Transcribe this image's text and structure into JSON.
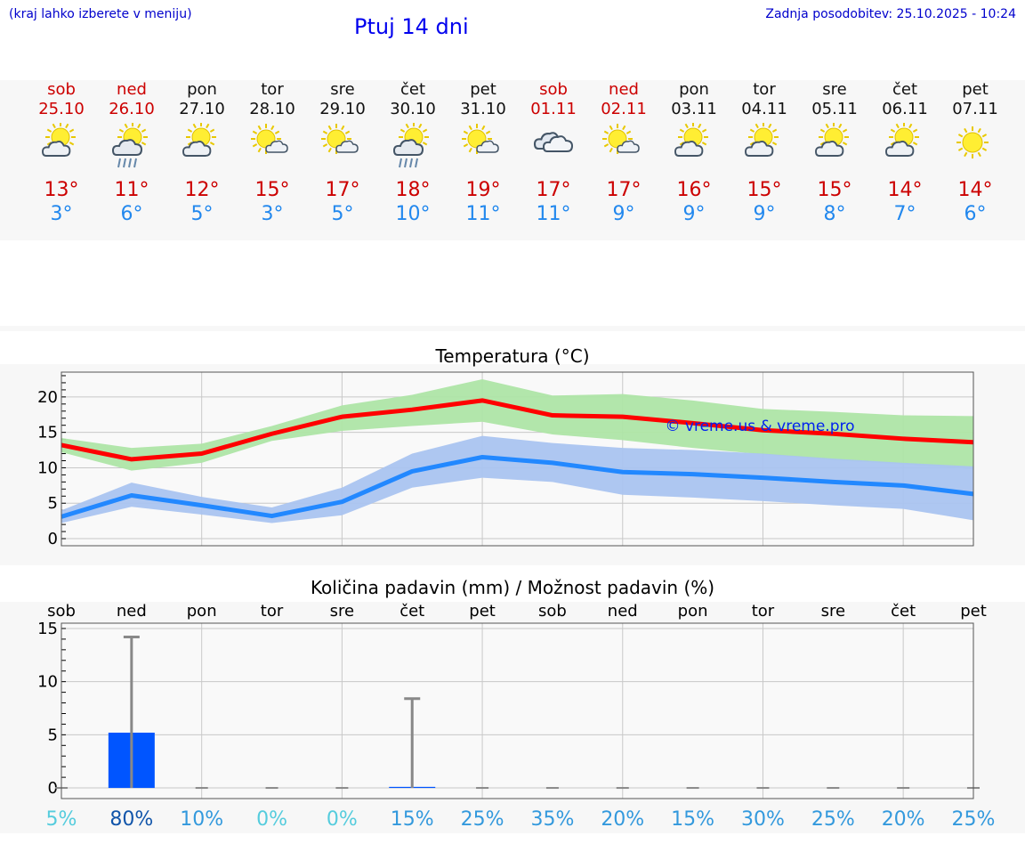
{
  "header": {
    "hint": "(kraj lahko izberete v meniju)",
    "title": "Ptuj 14 dni",
    "updated": "Zadnja posodobitev: 25.10.2025 - 10:24"
  },
  "days": [
    {
      "name": "sob",
      "date": "25.10",
      "weekend": true,
      "icon": "sun-cloud-icon",
      "tmax": "13°",
      "tmin": "3°"
    },
    {
      "name": "ned",
      "date": "26.10",
      "weekend": true,
      "icon": "sun-cloud-rain-icon",
      "tmax": "11°",
      "tmin": "6°"
    },
    {
      "name": "pon",
      "date": "27.10",
      "weekend": false,
      "icon": "sun-cloud-icon",
      "tmax": "12°",
      "tmin": "5°"
    },
    {
      "name": "tor",
      "date": "28.10",
      "weekend": false,
      "icon": "sun-small-cloud-icon",
      "tmax": "15°",
      "tmin": "3°"
    },
    {
      "name": "sre",
      "date": "29.10",
      "weekend": false,
      "icon": "sun-small-cloud-icon",
      "tmax": "17°",
      "tmin": "5°"
    },
    {
      "name": "čet",
      "date": "30.10",
      "weekend": false,
      "icon": "sun-cloud-rain-icon",
      "tmax": "18°",
      "tmin": "10°"
    },
    {
      "name": "pet",
      "date": "31.10",
      "weekend": false,
      "icon": "sun-small-cloud-icon",
      "tmax": "19°",
      "tmin": "11°"
    },
    {
      "name": "sob",
      "date": "01.11",
      "weekend": true,
      "icon": "overcast-icon",
      "tmax": "17°",
      "tmin": "11°"
    },
    {
      "name": "ned",
      "date": "02.11",
      "weekend": true,
      "icon": "sun-small-cloud-icon",
      "tmax": "17°",
      "tmin": "9°"
    },
    {
      "name": "pon",
      "date": "03.11",
      "weekend": false,
      "icon": "sun-cloud-icon",
      "tmax": "16°",
      "tmin": "9°"
    },
    {
      "name": "tor",
      "date": "04.11",
      "weekend": false,
      "icon": "sun-cloud-icon",
      "tmax": "15°",
      "tmin": "9°"
    },
    {
      "name": "sre",
      "date": "05.11",
      "weekend": false,
      "icon": "sun-cloud-icon",
      "tmax": "15°",
      "tmin": "8°"
    },
    {
      "name": "čet",
      "date": "06.11",
      "weekend": false,
      "icon": "sun-cloud-icon",
      "tmax": "14°",
      "tmin": "7°"
    },
    {
      "name": "pet",
      "date": "07.11",
      "weekend": false,
      "icon": "sun-icon",
      "tmax": "14°",
      "tmin": "6°"
    }
  ],
  "chart_data": [
    {
      "type": "line",
      "title": "Temperatura (°C)",
      "watermark": "© vreme.us & vreme.pro",
      "x": [
        0,
        1,
        2,
        3,
        4,
        5,
        6,
        7,
        8,
        9,
        10,
        11,
        12,
        13
      ],
      "ylim": [
        -1,
        23.5
      ],
      "yticks": [
        0,
        5,
        10,
        15,
        20
      ],
      "grid": true,
      "series": [
        {
          "values": [
            13.2,
            11.2,
            12.0,
            14.8,
            17.2,
            18.2,
            19.5,
            17.4,
            17.2,
            16.3,
            15.3,
            14.8,
            14.1,
            13.6
          ],
          "color": "#ff0000",
          "band_high": [
            14.2,
            12.8,
            13.4,
            15.9,
            18.8,
            20.3,
            22.5,
            20.2,
            20.4,
            19.5,
            18.3,
            17.9,
            17.4,
            17.3
          ],
          "band_low": [
            12.2,
            9.6,
            10.7,
            13.8,
            15.2,
            15.9,
            16.5,
            14.7,
            13.9,
            12.8,
            11.9,
            11.1,
            10.5,
            9.8
          ],
          "band_color": "#aee5a6"
        },
        {
          "values": [
            3.1,
            6.1,
            4.7,
            3.2,
            5.2,
            9.5,
            11.5,
            10.7,
            9.4,
            9.1,
            8.6,
            8.0,
            7.5,
            6.3
          ],
          "color": "#2288ff",
          "band_high": [
            4.0,
            7.9,
            5.9,
            4.4,
            7.2,
            12.0,
            14.5,
            13.5,
            12.8,
            12.5,
            12.0,
            11.3,
            10.7,
            10.2
          ],
          "band_low": [
            2.2,
            4.5,
            3.4,
            2.2,
            3.3,
            7.2,
            8.6,
            8.0,
            6.2,
            5.8,
            5.3,
            4.7,
            4.2,
            2.6
          ],
          "band_color": "#aac4f0"
        }
      ]
    },
    {
      "type": "bar",
      "title": "Količina padavin (mm) / Možnost padavin (%)",
      "categories": [
        "sob",
        "ned",
        "pon",
        "tor",
        "sre",
        "čet",
        "pet",
        "sob",
        "ned",
        "pon",
        "tor",
        "sre",
        "čet",
        "pet"
      ],
      "values": [
        0,
        5.2,
        0,
        0,
        0,
        0.1,
        0,
        0,
        0,
        0,
        0,
        0,
        0,
        0
      ],
      "max_values": [
        0,
        14.2,
        0,
        0,
        0,
        8.4,
        0,
        0,
        0,
        0,
        0,
        0,
        0,
        0
      ],
      "probability": [
        "5%",
        "80%",
        "10%",
        "0%",
        "0%",
        "15%",
        "25%",
        "35%",
        "20%",
        "15%",
        "30%",
        "25%",
        "20%",
        "25%"
      ],
      "probability_colors": [
        "#55ccdd",
        "#1155aa",
        "#3399dd",
        "#55ccdd",
        "#55ccdd",
        "#3399dd",
        "#3399dd",
        "#3399dd",
        "#3399dd",
        "#3399dd",
        "#3399dd",
        "#3399dd",
        "#3399dd",
        "#3399dd"
      ],
      "ylim": [
        -1,
        15.5
      ],
      "yticks": [
        0,
        5,
        10,
        15
      ],
      "bar_color": "#0055ff",
      "whisker_color": "#888888",
      "grid": true
    }
  ],
  "colors": {
    "weekday": "#111111",
    "weekend": "#cc0000",
    "tmax": "#cc0000",
    "tmin": "#2288ee",
    "link": "#0000cc"
  }
}
